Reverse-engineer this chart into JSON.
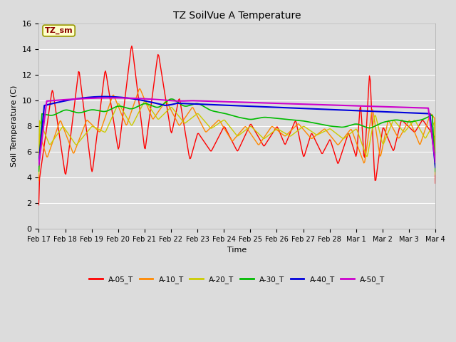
{
  "title": "TZ SoilVue A Temperature",
  "ylabel": "Soil Temperature (C)",
  "xlabel": "Time",
  "ylim": [
    0,
    16
  ],
  "yticks": [
    0,
    2,
    4,
    6,
    8,
    10,
    12,
    14,
    16
  ],
  "fig_bg": "#dcdcdc",
  "plot_bg": "#dcdcdc",
  "grid_color": "#ffffff",
  "annotation_text": "TZ_sm",
  "annotation_color": "#8b0000",
  "annotation_bg": "#ffffcc",
  "annotation_border": "#999900",
  "line_colors": {
    "A-05_T": "#ff0000",
    "A-10_T": "#ff8800",
    "A-20_T": "#cccc00",
    "A-30_T": "#00bb00",
    "A-40_T": "#0000dd",
    "A-50_T": "#cc00cc"
  },
  "x_labels": [
    "Feb 17",
    "Feb 18",
    "Feb 19",
    "Feb 20",
    "Feb 21",
    "Feb 22",
    "Feb 23",
    "Feb 24",
    "Feb 25",
    "Feb 26",
    "Feb 27",
    "Feb 28",
    "Mar 1",
    "Mar 2",
    "Mar 3",
    "Mar 4"
  ],
  "figsize": [
    6.4,
    4.8
  ],
  "dpi": 100
}
